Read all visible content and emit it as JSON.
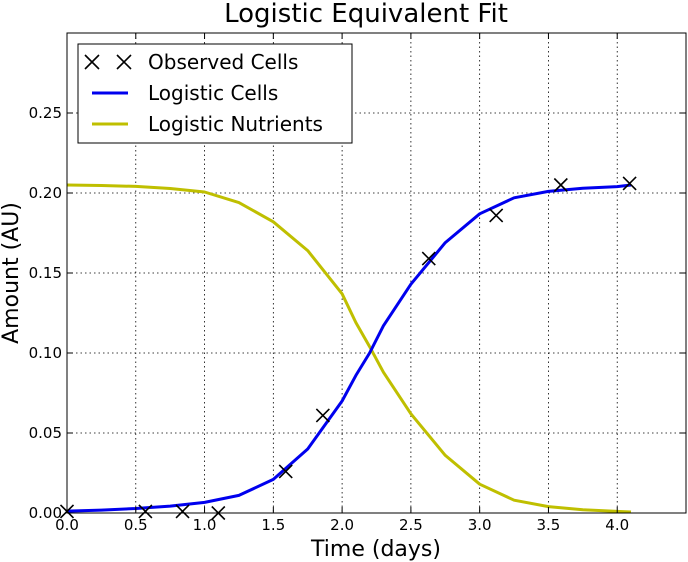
{
  "chart_data": {
    "type": "line",
    "title": "Logistic Equivalent Fit",
    "xlabel": "Time (days)",
    "ylabel": "Amount (AU)",
    "xlim": [
      0.0,
      4.5
    ],
    "ylim": [
      0.0,
      0.3
    ],
    "xticks": [
      0.0,
      0.5,
      1.0,
      1.5,
      2.0,
      2.5,
      3.0,
      3.5,
      4.0
    ],
    "xtick_labels": [
      "0.0",
      "0.5",
      "1.0",
      "1.5",
      "2.0",
      "2.5",
      "3.0",
      "3.5",
      "4.0"
    ],
    "yticks": [
      0.0,
      0.05,
      0.1,
      0.15,
      0.2,
      0.25
    ],
    "ytick_labels": [
      "0.00",
      "0.05",
      "0.10",
      "0.15",
      "0.20",
      "0.25"
    ],
    "grid": true,
    "legend_position": "top-left",
    "series": [
      {
        "name": "Observed Cells",
        "kind": "scatter",
        "marker": "x",
        "color": "#000000",
        "x": [
          0.0,
          0.57,
          0.84,
          1.1,
          1.59,
          1.86,
          2.63,
          3.12,
          3.59,
          4.09
        ],
        "y": [
          0.001,
          0.001,
          0.001,
          0.0,
          0.026,
          0.061,
          0.159,
          0.186,
          0.205,
          0.206
        ]
      },
      {
        "name": "Logistic Cells",
        "kind": "line",
        "color": "#0000ee",
        "x": [
          0.0,
          0.25,
          0.5,
          0.75,
          1.0,
          1.25,
          1.5,
          1.75,
          2.0,
          2.1,
          2.2,
          2.3,
          2.5,
          2.75,
          3.0,
          3.25,
          3.5,
          3.75,
          4.0,
          4.1
        ],
        "y": [
          0.0012,
          0.0018,
          0.0028,
          0.0043,
          0.0066,
          0.011,
          0.021,
          0.04,
          0.07,
          0.086,
          0.1,
          0.117,
          0.143,
          0.169,
          0.187,
          0.197,
          0.201,
          0.203,
          0.204,
          0.205
        ]
      },
      {
        "name": "Logistic Nutrients",
        "kind": "line",
        "color": "#bfbf00",
        "x": [
          0.0,
          0.25,
          0.5,
          0.75,
          1.0,
          1.25,
          1.5,
          1.75,
          2.0,
          2.1,
          2.2,
          2.3,
          2.5,
          2.75,
          3.0,
          3.25,
          3.5,
          3.75,
          4.0,
          4.1
        ],
        "y": [
          0.205,
          0.2047,
          0.2041,
          0.2028,
          0.2006,
          0.194,
          0.182,
          0.164,
          0.137,
          0.119,
          0.104,
          0.088,
          0.062,
          0.036,
          0.018,
          0.008,
          0.004,
          0.002,
          0.001,
          0.0006
        ]
      }
    ]
  }
}
